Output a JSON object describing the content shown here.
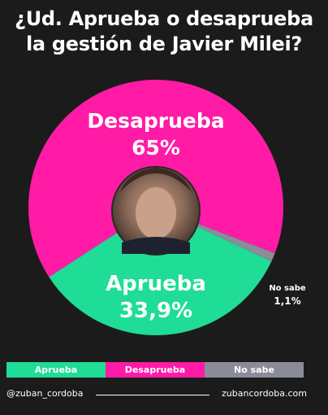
{
  "header": {
    "title_line1": "¿Ud. Aprueba o desaprueba",
    "title_line2": "la gestión de Javier Milei?"
  },
  "chart_data": {
    "type": "pie",
    "title": "¿Ud. Aprueba o desaprueba la gestión de Javier Milei?",
    "unit": "%",
    "slices": [
      {
        "label": "Desaprueba",
        "value": 65,
        "value_label": "65%",
        "color": "#ff1ba6"
      },
      {
        "label": "Aprueba",
        "value": 33.9,
        "value_label": "33,9%",
        "color": "#1fdc97"
      },
      {
        "label": "No sabe",
        "value": 1.1,
        "value_label": "1,1%",
        "color": "#8a8c99"
      }
    ]
  },
  "legend": {
    "items": [
      {
        "label": "Aprueba",
        "color": "#1fdc97"
      },
      {
        "label": "Desaprueba",
        "color": "#ff1ba6"
      },
      {
        "label": "No sabe",
        "color": "#8a8c99"
      }
    ]
  },
  "photo": {
    "icon": "portrait-photo"
  },
  "footer": {
    "handle": "@zuban_cordoba",
    "site": "zubancordoba.com"
  }
}
